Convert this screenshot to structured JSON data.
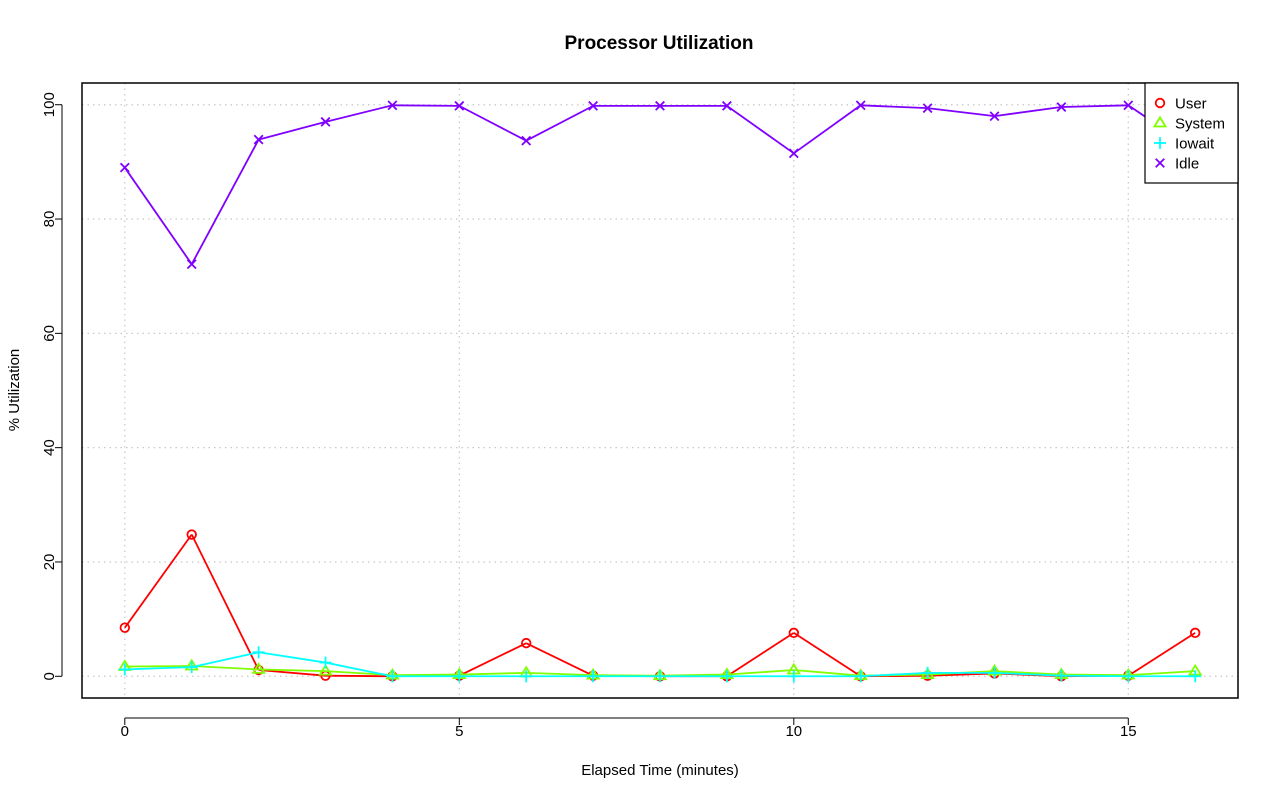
{
  "chart_data": {
    "type": "line",
    "title": "Processor Utilization",
    "xlabel": "Elapsed Time (minutes)",
    "ylabel": "% Utilization",
    "xlim": [
      -0.64,
      16.64
    ],
    "ylim": [
      -3.8,
      103.8
    ],
    "x_ticks": [
      0,
      5,
      10,
      15
    ],
    "y_ticks": [
      0,
      20,
      40,
      60,
      80,
      100
    ],
    "grid": true,
    "legend_position": "top-right",
    "x": [
      0,
      1,
      2,
      3,
      4,
      5,
      6,
      7,
      8,
      9,
      10,
      11,
      12,
      13,
      14,
      15,
      16
    ],
    "series": [
      {
        "name": "User",
        "color": "#ff0000",
        "marker": "circle",
        "values": [
          8.5,
          24.8,
          1.1,
          0.1,
          0.0,
          0.1,
          5.8,
          0.1,
          0.0,
          0.0,
          7.6,
          0.0,
          0.1,
          0.5,
          0.0,
          0.1,
          7.6
        ]
      },
      {
        "name": "System",
        "color": "#80ff00",
        "marker": "triangle",
        "values": [
          1.7,
          1.8,
          1.2,
          0.9,
          0.2,
          0.3,
          0.6,
          0.2,
          0.1,
          0.3,
          1.1,
          0.1,
          0.3,
          0.9,
          0.3,
          0.2,
          0.9
        ]
      },
      {
        "name": "Iowait",
        "color": "#00ffff",
        "marker": "plus",
        "values": [
          1.2,
          1.6,
          4.2,
          2.4,
          0.0,
          0.0,
          0.0,
          0.0,
          0.0,
          0.0,
          0.0,
          0.0,
          0.6,
          0.6,
          0.1,
          0.0,
          0.0
        ]
      },
      {
        "name": "Idle",
        "color": "#8000ff",
        "marker": "cross",
        "values": [
          89.0,
          72.1,
          93.9,
          97.0,
          99.9,
          99.8,
          93.7,
          99.8,
          99.8,
          99.8,
          91.5,
          99.9,
          99.4,
          98.0,
          99.6,
          99.9,
          92.0
        ]
      }
    ]
  }
}
